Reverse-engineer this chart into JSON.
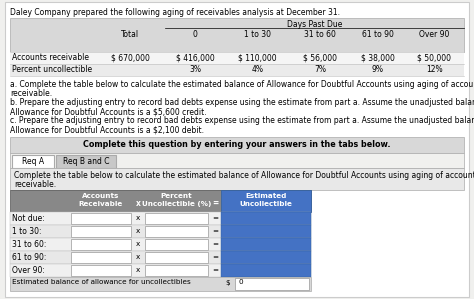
{
  "title": "Daley Company prepared the following aging of receivables analysis at December 31.",
  "days_past_due": "Days Past Due",
  "top_col_headers": [
    "Total",
    "0",
    "1 to 30",
    "31 to 60",
    "61 to 90",
    "Over 90"
  ],
  "ar_label": "Accounts receivable",
  "pct_label": "Percent uncollectible",
  "ar_values": [
    "$ 670,000",
    "$ 416,000",
    "$ 110,000",
    "$ 56,000",
    "$ 38,000",
    "$ 50,000"
  ],
  "pct_values": [
    "",
    "3%",
    "4%",
    "7%",
    "9%",
    "12%"
  ],
  "instr_a": "a. Complete the table below to calculate the estimated balance of Allowance for Doubtful Accounts using aging of accounts",
  "instr_a2": "receivable.",
  "instr_b": "b. Prepare the adjusting entry to record bad debts expense using the estimate from part a. Assume the unadjusted balance in the",
  "instr_b2": "Allowance for Doubtful Accounts is a $5,600 credit.",
  "instr_c": "c. Prepare the adjusting entry to record bad debts expense using the estimate from part a. Assume the unadjusted balance in the",
  "instr_c2": "Allowance for Doubtful Accounts is a $2,100 debit.",
  "complete_msg": "Complete this question by entering your answers in the tabs below.",
  "tab1": "Req A",
  "tab2": "Req B and C",
  "tbl_instr1": "Complete the table below to calculate the estimated balance of Allowance for Doubtful Accounts using aging of accounts",
  "tbl_instr2": "receivable.",
  "col_h1": "Accounts",
  "col_h2": "Receivable",
  "col_hx": "x",
  "col_h3": "Percent",
  "col_h4": "Uncollectible (%)",
  "col_heq": "=",
  "col_h5": "Estimated",
  "col_h6": "Uncollectible",
  "row_labels": [
    "Not due:",
    "1 to 30:",
    "31 to 60:",
    "61 to 90:",
    "Over 90:"
  ],
  "bot_label": "Estimated balance of allowance for uncollectibles",
  "bot_dollar": "$",
  "bot_val": "0",
  "bg": "#f0f0ee",
  "white": "#ffffff",
  "light_gray": "#e8e8e8",
  "med_gray": "#c8c8c8",
  "dark_gray": "#888888",
  "tab_gray": "#d0d0d0",
  "blue": "#4472c4",
  "row_stripe1": "#f0f0f0",
  "row_stripe2": "#e8e8e8"
}
